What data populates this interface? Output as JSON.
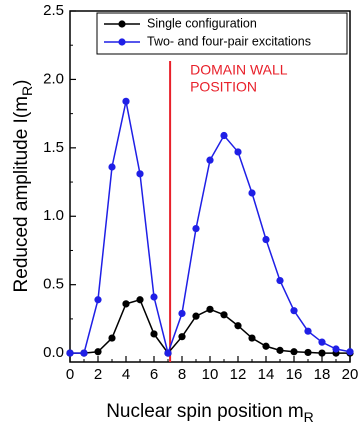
{
  "chart_data": {
    "type": "line",
    "x_label": "Nuclear spin position m",
    "x_label_sub": "R",
    "y_label": "Reduced amplitude I(m",
    "y_label_sub": "R",
    "y_label_end": ")",
    "x": [
      0,
      1,
      2,
      3,
      4,
      5,
      6,
      7,
      8,
      9,
      10,
      11,
      12,
      13,
      14,
      15,
      16,
      17,
      18,
      19,
      20
    ],
    "series": [
      {
        "name": "Single configuration",
        "color": "#000000",
        "values": [
          0,
          0,
          0.01,
          0.11,
          0.36,
          0.39,
          0.14,
          0,
          0.12,
          0.27,
          0.32,
          0.28,
          0.2,
          0.11,
          0.05,
          0.02,
          0.01,
          0.005,
          0,
          0,
          0
        ]
      },
      {
        "name": "Two- and four-pair excitations",
        "color": "#1f1fe6",
        "values": [
          0,
          0,
          0.39,
          1.36,
          1.84,
          1.31,
          0.41,
          0,
          0.29,
          0.91,
          1.41,
          1.59,
          1.47,
          1.17,
          0.83,
          0.53,
          0.31,
          0.16,
          0.08,
          0.03,
          0.01
        ]
      }
    ],
    "xlim": [
      0,
      20
    ],
    "xticks": [
      0,
      2,
      4,
      6,
      8,
      10,
      12,
      14,
      16,
      18,
      20
    ],
    "ylim": [
      -0.065,
      2.5
    ],
    "yticks": [
      {
        "value": 0,
        "label": "0.0"
      },
      0.5,
      {
        "value": 1,
        "label": "1.0"
      },
      1.5,
      {
        "value": 2,
        "label": "2.0"
      },
      2.5
    ],
    "vline": {
      "x": 7.15,
      "color": "#e8202a",
      "label": [
        "DOMAIN WALL",
        "POSITION"
      ]
    },
    "legend": "top-right"
  }
}
